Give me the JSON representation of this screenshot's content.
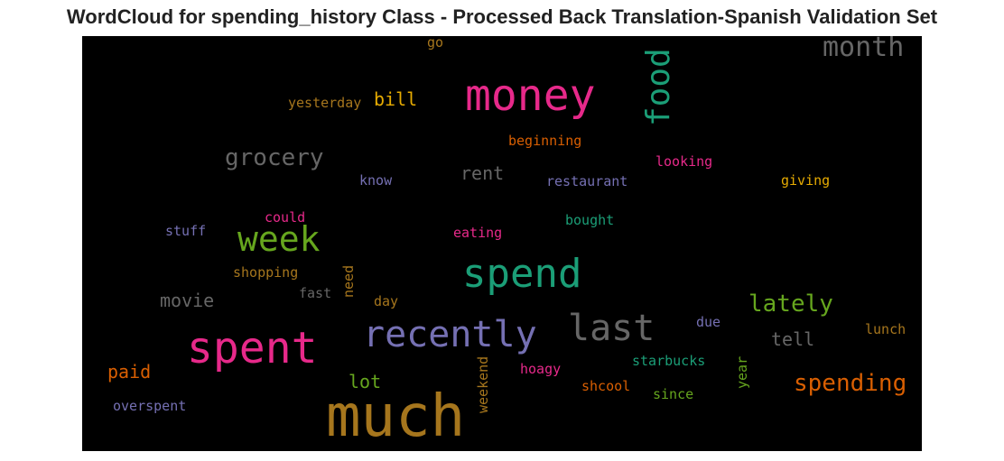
{
  "title": "WordCloud for spending_history Class - Processed Back Translation-Spanish Validation Set",
  "colors": {
    "background": "#000000",
    "magenta": "#e7298a",
    "green": "#1b9e77",
    "olive": "#66a61e",
    "orange": "#d95f02",
    "purple": "#7570b3",
    "gold": "#e6ab02",
    "brown": "#a6761d",
    "gray": "#666666"
  },
  "words": [
    {
      "text": "money",
      "color": "#e7298a"
    },
    {
      "text": "food",
      "color": "#1b9e77"
    },
    {
      "text": "month",
      "color": "#666666"
    },
    {
      "text": "go",
      "color": "#a6761d"
    },
    {
      "text": "yesterday",
      "color": "#a6761d"
    },
    {
      "text": "bill",
      "color": "#e6ab02"
    },
    {
      "text": "grocery",
      "color": "#666666"
    },
    {
      "text": "beginning",
      "color": "#d95f02"
    },
    {
      "text": "looking",
      "color": "#e7298a"
    },
    {
      "text": "rent",
      "color": "#666666"
    },
    {
      "text": "know",
      "color": "#7570b3"
    },
    {
      "text": "restaurant",
      "color": "#7570b3"
    },
    {
      "text": "giving",
      "color": "#e6ab02"
    },
    {
      "text": "could",
      "color": "#e7298a"
    },
    {
      "text": "bought",
      "color": "#1b9e77"
    },
    {
      "text": "stuff",
      "color": "#7570b3"
    },
    {
      "text": "week",
      "color": "#66a61e"
    },
    {
      "text": "eating",
      "color": "#e7298a"
    },
    {
      "text": "spend",
      "color": "#1b9e77"
    },
    {
      "text": "shopping",
      "color": "#a6761d"
    },
    {
      "text": "need",
      "color": "#a6761d"
    },
    {
      "text": "fast",
      "color": "#666666"
    },
    {
      "text": "movie",
      "color": "#666666"
    },
    {
      "text": "day",
      "color": "#a6761d"
    },
    {
      "text": "lately",
      "color": "#66a61e"
    },
    {
      "text": "last",
      "color": "#666666"
    },
    {
      "text": "recently",
      "color": "#7570b3"
    },
    {
      "text": "due",
      "color": "#7570b3"
    },
    {
      "text": "tell",
      "color": "#666666"
    },
    {
      "text": "lunch",
      "color": "#a6761d"
    },
    {
      "text": "spent",
      "color": "#e7298a"
    },
    {
      "text": "starbucks",
      "color": "#1b9e77"
    },
    {
      "text": "year",
      "color": "#66a61e"
    },
    {
      "text": "paid",
      "color": "#d95f02"
    },
    {
      "text": "weekend",
      "color": "#a6761d"
    },
    {
      "text": "hoagy",
      "color": "#e7298a"
    },
    {
      "text": "lot",
      "color": "#66a61e"
    },
    {
      "text": "spending",
      "color": "#d95f02"
    },
    {
      "text": "shcool",
      "color": "#d95f02"
    },
    {
      "text": "since",
      "color": "#66a61e"
    },
    {
      "text": "overspent",
      "color": "#7570b3"
    },
    {
      "text": "much",
      "color": "#a6761d"
    }
  ]
}
